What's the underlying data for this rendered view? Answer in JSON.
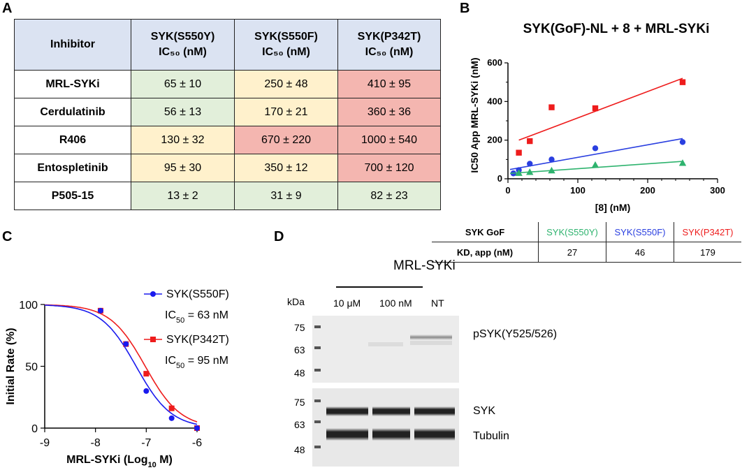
{
  "panels": {
    "a": "A",
    "b": "B",
    "c": "C",
    "d": "D"
  },
  "table_a": {
    "headers": [
      {
        "line1": "Inhibitor",
        "line2": ""
      },
      {
        "line1": "SYK(S550Y)",
        "line2": "IC₅₀ (nM)"
      },
      {
        "line1": "SYK(S550F)",
        "line2": "IC₅₀ (nM)"
      },
      {
        "line1": "SYK(P342T)",
        "line2": "IC₅₀ (nM)"
      }
    ],
    "rows": [
      {
        "name": "MRL-SYKi",
        "values": [
          "65 ± 10",
          "250 ± 48",
          "410 ± 95"
        ]
      },
      {
        "name": "Cerdulatinib",
        "values": [
          "56 ± 13",
          "170 ± 21",
          "360 ± 36"
        ]
      },
      {
        "name": "R406",
        "values": [
          "130 ±  32",
          "670 ± 220",
          "1000 ± 540"
        ]
      },
      {
        "name": "Entospletinib",
        "values": [
          "95 ± 30",
          "350 ± 12",
          "700 ± 120"
        ]
      },
      {
        "name": "P505-15",
        "values": [
          "13 ± 2",
          "31 ± 9",
          "82 ± 23"
        ]
      }
    ],
    "cell_colors": {
      "green": "#e2efda",
      "yellow": "#fff1cc",
      "red": "#f4b6b0",
      "header": "#dbe3f2"
    }
  },
  "table_kd": {
    "header_label": "SYK GoF",
    "row_label": "KD, app (nM)",
    "columns": [
      {
        "name": "SYK(S550Y)",
        "color": "#2eb36e",
        "value": "27"
      },
      {
        "name": "SYK(S550F)",
        "color": "#2a3fe0",
        "value": "46"
      },
      {
        "name": "SYK(P342T)",
        "color": "#ee1c1c",
        "value": "179"
      }
    ]
  },
  "chart_data": [
    {
      "id": "B",
      "type": "scatter",
      "title": "SYK(GoF)-NL + 8 + MRL-SYKi",
      "xlabel": "[8] (nM)",
      "ylabel": "IC50 App MRL-SYKi (nM)",
      "xlim": [
        0,
        300
      ],
      "ylim": [
        0,
        600
      ],
      "xticks": [
        0,
        100,
        200,
        300
      ],
      "yticks": [
        0,
        200,
        400,
        600
      ],
      "series": [
        {
          "name": "SYK(P342T)",
          "color": "#ee1c1c",
          "marker": "square",
          "x": [
            15.6,
            31.25,
            62.5,
            125,
            250
          ],
          "y": [
            135,
            195,
            370,
            365,
            500
          ],
          "fit": [
            [
              15.6,
              200
            ],
            [
              250,
              520
            ]
          ]
        },
        {
          "name": "SYK(S550F)",
          "color": "#2a3fe0",
          "marker": "circle",
          "x": [
            7.8,
            15.6,
            31.25,
            62.5,
            125,
            250
          ],
          "y": [
            28,
            45,
            78,
            100,
            158,
            190
          ],
          "fit": [
            [
              3,
              48
            ],
            [
              250,
              208
            ]
          ]
        },
        {
          "name": "SYK(S550Y)",
          "color": "#2eb36e",
          "marker": "triangle",
          "x": [
            15.6,
            31.25,
            62.5,
            125,
            250
          ],
          "y": [
            30,
            35,
            43,
            72,
            82
          ],
          "fit": [
            [
              3,
              28
            ],
            [
              250,
              90
            ]
          ]
        }
      ]
    },
    {
      "id": "C",
      "type": "line",
      "xlabel": "MRL-SYKi (Log",
      "xlabel_sub": "10",
      "xlabel_end": " M)",
      "ylabel": "Initial Rate (%)",
      "xlim": [
        -9,
        -6
      ],
      "ylim": [
        0,
        100
      ],
      "xticks": [
        -9,
        -8,
        -7,
        -6
      ],
      "yticks": [
        0,
        50,
        100
      ],
      "series": [
        {
          "name": "SYK(S550F)",
          "label": "SYK(S550F)",
          "ic50_text": "IC",
          "ic50_value": " = 63 nM",
          "color": "#1a1aee",
          "marker": "circle",
          "ic50_log": -7.2,
          "x": [
            -7.9,
            -7.4,
            -7.0,
            -6.5,
            -6.0
          ],
          "y": [
            95,
            68,
            30,
            8,
            0
          ]
        },
        {
          "name": "SYK(P342T)",
          "label": "SYK(P342T)",
          "ic50_text": "IC",
          "ic50_value": " = 95 nM",
          "color": "#ee1c1c",
          "marker": "square",
          "ic50_log": -7.02,
          "x": [
            -7.9,
            -7.4,
            -7.0,
            -6.5,
            -6.0
          ],
          "y": [
            95,
            68,
            44,
            16,
            0
          ]
        }
      ]
    }
  ],
  "blot": {
    "group_label": "MRL-SYKi",
    "kda_label": "kDa",
    "lanes": [
      "10 μM",
      "100 nM",
      "NT"
    ],
    "top_markers": [
      "75",
      "63",
      "48"
    ],
    "bottom_markers": [
      "75",
      "63",
      "48"
    ],
    "top_band_label": "pSYK(Y525/526)",
    "band_labels": [
      "SYK",
      "Tubulin"
    ]
  }
}
